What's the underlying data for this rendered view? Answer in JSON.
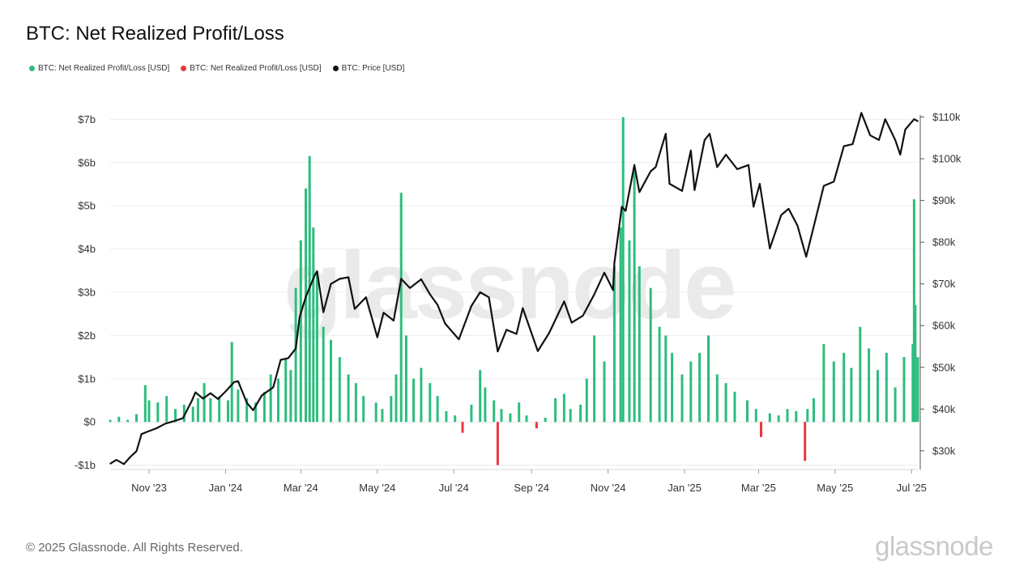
{
  "title": "BTC: Net Realized Profit/Loss",
  "legend": [
    {
      "label": "BTC: Net Realized Profit/Loss [USD]",
      "color": "#2dbd7e"
    },
    {
      "label": "BTC: Net Realized Profit/Loss [USD]",
      "color": "#e8383d"
    },
    {
      "label": "BTC: Price [USD]",
      "color": "#111111"
    }
  ],
  "footer": "© 2025 Glassnode. All Rights Reserved.",
  "brand": "glassnode",
  "watermark": "glassnode",
  "chart_data": {
    "type": "bar",
    "title": "BTC: Net Realized Profit/Loss",
    "x_range": [
      "2023-10-01",
      "2025-07-06"
    ],
    "x_ticks": [
      {
        "date": "2023-11-01",
        "label": "Nov '23"
      },
      {
        "date": "2024-01-01",
        "label": "Jan '24"
      },
      {
        "date": "2024-03-01",
        "label": "Mar '24"
      },
      {
        "date": "2024-05-01",
        "label": "May '24"
      },
      {
        "date": "2024-07-01",
        "label": "Jul '24"
      },
      {
        "date": "2024-09-01",
        "label": "Sep '24"
      },
      {
        "date": "2024-11-01",
        "label": "Nov '24"
      },
      {
        "date": "2025-01-01",
        "label": "Jan '25"
      },
      {
        "date": "2025-03-01",
        "label": "Mar '25"
      },
      {
        "date": "2025-05-01",
        "label": "May '25"
      },
      {
        "date": "2025-07-01",
        "label": "Jul '25"
      }
    ],
    "y_left": {
      "ylim": [
        -1.1,
        7.1
      ],
      "unit": "USD billions",
      "ticks": [
        {
          "value": 7,
          "label": "$7b"
        },
        {
          "value": 6,
          "label": "$6b"
        },
        {
          "value": 5,
          "label": "$5b"
        },
        {
          "value": 4,
          "label": "$4b"
        },
        {
          "value": 3,
          "label": "$3b"
        },
        {
          "value": 2,
          "label": "$2b"
        },
        {
          "value": 1,
          "label": "$1b"
        },
        {
          "value": 0,
          "label": "$0"
        },
        {
          "value": -1,
          "label": "-$1b"
        }
      ]
    },
    "y_right": {
      "ylim": [
        25500,
        110500
      ],
      "scale": "linear",
      "ticks": [
        {
          "value": 110000,
          "label": "$110k"
        },
        {
          "value": 100000,
          "label": "$100k"
        },
        {
          "value": 90000,
          "label": "$90k"
        },
        {
          "value": 80000,
          "label": "$80k"
        },
        {
          "value": 70000,
          "label": "$70k"
        },
        {
          "value": 60000,
          "label": "$60k"
        },
        {
          "value": 50000,
          "label": "$50k"
        },
        {
          "value": 40000,
          "label": "$40k"
        },
        {
          "value": 30000,
          "label": "$30k"
        }
      ]
    },
    "grid": true,
    "legend_position": "top-left",
    "profit_color": "#2dbd7e",
    "loss_color": "#e8383d",
    "price_color": "#111111",
    "net_realized_pl": [
      [
        "2023-10-01",
        0.05
      ],
      [
        "2023-10-08",
        0.12
      ],
      [
        "2023-10-15",
        0.05
      ],
      [
        "2023-10-22",
        0.18
      ],
      [
        "2023-10-29",
        0.85
      ],
      [
        "2023-11-01",
        0.5
      ],
      [
        "2023-11-08",
        0.45
      ],
      [
        "2023-11-15",
        0.6
      ],
      [
        "2023-11-22",
        0.3
      ],
      [
        "2023-11-29",
        0.4
      ],
      [
        "2023-12-06",
        0.35
      ],
      [
        "2023-12-10",
        0.55
      ],
      [
        "2023-12-15",
        0.9
      ],
      [
        "2023-12-20",
        0.55
      ],
      [
        "2023-12-27",
        0.6
      ],
      [
        "2024-01-03",
        0.5
      ],
      [
        "2024-01-06",
        1.85
      ],
      [
        "2024-01-11",
        0.75
      ],
      [
        "2024-01-18",
        0.55
      ],
      [
        "2024-01-25",
        0.45
      ],
      [
        "2024-02-01",
        0.7
      ],
      [
        "2024-02-06",
        1.1
      ],
      [
        "2024-02-12",
        1.0
      ],
      [
        "2024-02-18",
        1.45
      ],
      [
        "2024-02-22",
        1.2
      ],
      [
        "2024-02-26",
        3.1
      ],
      [
        "2024-03-01",
        4.2
      ],
      [
        "2024-03-05",
        5.4
      ],
      [
        "2024-03-08",
        6.15
      ],
      [
        "2024-03-11",
        4.5
      ],
      [
        "2024-03-14",
        3.4
      ],
      [
        "2024-03-19",
        2.2
      ],
      [
        "2024-03-25",
        1.9
      ],
      [
        "2024-04-01",
        1.5
      ],
      [
        "2024-04-08",
        1.1
      ],
      [
        "2024-04-14",
        0.9
      ],
      [
        "2024-04-20",
        0.6
      ],
      [
        "2024-04-30",
        0.45
      ],
      [
        "2024-05-05",
        0.3
      ],
      [
        "2024-05-12",
        0.6
      ],
      [
        "2024-05-16",
        1.1
      ],
      [
        "2024-05-20",
        5.3
      ],
      [
        "2024-05-24",
        2.0
      ],
      [
        "2024-05-30",
        1.0
      ],
      [
        "2024-06-05",
        1.25
      ],
      [
        "2024-06-12",
        0.9
      ],
      [
        "2024-06-18",
        0.6
      ],
      [
        "2024-06-25",
        0.25
      ],
      [
        "2024-07-02",
        0.15
      ],
      [
        "2024-07-08",
        -0.25
      ],
      [
        "2024-07-15",
        0.4
      ],
      [
        "2024-07-22",
        1.2
      ],
      [
        "2024-07-26",
        0.8
      ],
      [
        "2024-08-02",
        0.5
      ],
      [
        "2024-08-05",
        -1.0
      ],
      [
        "2024-08-08",
        0.3
      ],
      [
        "2024-08-15",
        0.2
      ],
      [
        "2024-08-22",
        0.45
      ],
      [
        "2024-08-28",
        0.15
      ],
      [
        "2024-09-05",
        -0.15
      ],
      [
        "2024-09-12",
        0.1
      ],
      [
        "2024-09-20",
        0.55
      ],
      [
        "2024-09-27",
        0.65
      ],
      [
        "2024-10-02",
        0.3
      ],
      [
        "2024-10-10",
        0.4
      ],
      [
        "2024-10-15",
        1.0
      ],
      [
        "2024-10-21",
        2.0
      ],
      [
        "2024-10-29",
        1.4
      ],
      [
        "2024-11-06",
        3.6
      ],
      [
        "2024-11-11",
        4.5
      ],
      [
        "2024-11-13",
        7.05
      ],
      [
        "2024-11-18",
        4.2
      ],
      [
        "2024-11-22",
        5.8
      ],
      [
        "2024-11-26",
        3.6
      ],
      [
        "2024-12-05",
        3.1
      ],
      [
        "2024-12-12",
        2.2
      ],
      [
        "2024-12-17",
        2.0
      ],
      [
        "2024-12-22",
        1.6
      ],
      [
        "2024-12-30",
        1.1
      ],
      [
        "2025-01-06",
        1.4
      ],
      [
        "2025-01-13",
        1.6
      ],
      [
        "2025-01-20",
        2.0
      ],
      [
        "2025-01-27",
        1.1
      ],
      [
        "2025-02-03",
        0.9
      ],
      [
        "2025-02-10",
        0.7
      ],
      [
        "2025-02-20",
        0.5
      ],
      [
        "2025-02-27",
        0.3
      ],
      [
        "2025-03-03",
        -0.35
      ],
      [
        "2025-03-10",
        0.2
      ],
      [
        "2025-03-17",
        0.15
      ],
      [
        "2025-03-24",
        0.3
      ],
      [
        "2025-03-31",
        0.25
      ],
      [
        "2025-04-07",
        -0.9
      ],
      [
        "2025-04-09",
        0.3
      ],
      [
        "2025-04-14",
        0.55
      ],
      [
        "2025-04-22",
        1.8
      ],
      [
        "2025-04-30",
        1.4
      ],
      [
        "2025-05-08",
        1.6
      ],
      [
        "2025-05-14",
        1.25
      ],
      [
        "2025-05-21",
        2.2
      ],
      [
        "2025-05-28",
        1.7
      ],
      [
        "2025-06-04",
        1.2
      ],
      [
        "2025-06-11",
        1.6
      ],
      [
        "2025-06-18",
        0.8
      ],
      [
        "2025-06-25",
        1.5
      ],
      [
        "2025-07-02",
        1.8
      ],
      [
        "2025-07-03",
        5.15
      ],
      [
        "2025-07-04",
        2.7
      ],
      [
        "2025-07-06",
        1.5
      ]
    ],
    "btc_price": [
      [
        "2023-10-01",
        26900
      ],
      [
        "2023-10-06",
        27800
      ],
      [
        "2023-10-12",
        26800
      ],
      [
        "2023-10-17",
        28500
      ],
      [
        "2023-10-22",
        29900
      ],
      [
        "2023-10-26",
        34000
      ],
      [
        "2023-10-31",
        34600
      ],
      [
        "2023-11-07",
        35400
      ],
      [
        "2023-11-14",
        36500
      ],
      [
        "2023-11-21",
        37100
      ],
      [
        "2023-11-28",
        37800
      ],
      [
        "2023-12-05",
        41900
      ],
      [
        "2023-12-08",
        44000
      ],
      [
        "2023-12-14",
        42500
      ],
      [
        "2023-12-20",
        43800
      ],
      [
        "2023-12-26",
        42400
      ],
      [
        "2024-01-01",
        44200
      ],
      [
        "2024-01-08",
        46500
      ],
      [
        "2024-01-11",
        46700
      ],
      [
        "2024-01-18",
        41500
      ],
      [
        "2024-01-23",
        39700
      ],
      [
        "2024-01-30",
        43300
      ],
      [
        "2024-02-08",
        45200
      ],
      [
        "2024-02-14",
        51800
      ],
      [
        "2024-02-20",
        52200
      ],
      [
        "2024-02-26",
        54500
      ],
      [
        "2024-02-29",
        62000
      ],
      [
        "2024-03-05",
        66900
      ],
      [
        "2024-03-12",
        72000
      ],
      [
        "2024-03-14",
        73000
      ],
      [
        "2024-03-19",
        63200
      ],
      [
        "2024-03-25",
        70000
      ],
      [
        "2024-04-01",
        71200
      ],
      [
        "2024-04-08",
        71600
      ],
      [
        "2024-04-13",
        64000
      ],
      [
        "2024-04-22",
        66800
      ],
      [
        "2024-05-01",
        57200
      ],
      [
        "2024-05-06",
        63100
      ],
      [
        "2024-05-14",
        61200
      ],
      [
        "2024-05-20",
        71200
      ],
      [
        "2024-05-27",
        69000
      ],
      [
        "2024-06-05",
        71100
      ],
      [
        "2024-06-12",
        67500
      ],
      [
        "2024-06-18",
        65000
      ],
      [
        "2024-06-24",
        60500
      ],
      [
        "2024-07-05",
        56700
      ],
      [
        "2024-07-15",
        64700
      ],
      [
        "2024-07-22",
        68000
      ],
      [
        "2024-07-29",
        66800
      ],
      [
        "2024-08-05",
        53800
      ],
      [
        "2024-08-12",
        59000
      ],
      [
        "2024-08-20",
        58000
      ],
      [
        "2024-08-25",
        64200
      ],
      [
        "2024-09-06",
        53900
      ],
      [
        "2024-09-15",
        58200
      ],
      [
        "2024-09-27",
        65800
      ],
      [
        "2024-10-03",
        60700
      ],
      [
        "2024-10-12",
        62400
      ],
      [
        "2024-10-21",
        67500
      ],
      [
        "2024-10-29",
        72700
      ],
      [
        "2024-11-05",
        68500
      ],
      [
        "2024-11-06",
        75000
      ],
      [
        "2024-11-12",
        88500
      ],
      [
        "2024-11-15",
        87500
      ],
      [
        "2024-11-22",
        98500
      ],
      [
        "2024-11-26",
        92000
      ],
      [
        "2024-12-05",
        97000
      ],
      [
        "2024-12-09",
        98000
      ],
      [
        "2024-12-17",
        106000
      ],
      [
        "2024-12-20",
        94000
      ],
      [
        "2024-12-30",
        92300
      ],
      [
        "2025-01-06",
        102000
      ],
      [
        "2025-01-09",
        92500
      ],
      [
        "2025-01-17",
        104500
      ],
      [
        "2025-01-21",
        106000
      ],
      [
        "2025-01-27",
        98000
      ],
      [
        "2025-02-03",
        101000
      ],
      [
        "2025-02-12",
        97500
      ],
      [
        "2025-02-21",
        98500
      ],
      [
        "2025-02-25",
        88500
      ],
      [
        "2025-03-02",
        94000
      ],
      [
        "2025-03-10",
        78500
      ],
      [
        "2025-03-19",
        86500
      ],
      [
        "2025-03-25",
        88000
      ],
      [
        "2025-04-01",
        84000
      ],
      [
        "2025-04-08",
        76500
      ],
      [
        "2025-04-15",
        85000
      ],
      [
        "2025-04-22",
        93500
      ],
      [
        "2025-04-30",
        94500
      ],
      [
        "2025-05-08",
        103000
      ],
      [
        "2025-05-15",
        103500
      ],
      [
        "2025-05-22",
        111000
      ],
      [
        "2025-05-29",
        105600
      ],
      [
        "2025-06-05",
        104500
      ],
      [
        "2025-06-10",
        109500
      ],
      [
        "2025-06-18",
        104500
      ],
      [
        "2025-06-22",
        101000
      ],
      [
        "2025-06-26",
        107000
      ],
      [
        "2025-07-03",
        109500
      ],
      [
        "2025-07-06",
        109000
      ]
    ]
  }
}
